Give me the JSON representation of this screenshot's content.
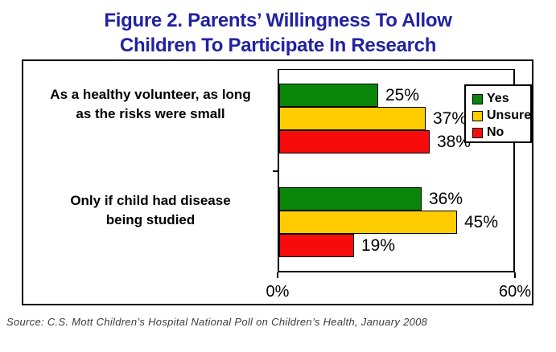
{
  "title": {
    "line1": "Figure 2. Parents’ Willingness To Allow",
    "line2": "Children To Participate In Research",
    "color": "#2222A2"
  },
  "category_labels": {
    "cat1_line1": "As a healthy volunteer, as long",
    "cat1_line2": "as the risks were small",
    "cat2_line1": "Only if child had disease",
    "cat2_line2": "being studied"
  },
  "source": "Source: C.S. Mott Children’s Hospital National Poll on Children’s Health, January 2008",
  "chart_data": {
    "type": "bar",
    "orientation": "horizontal",
    "title": "Figure 2. Parents’ Willingness To Allow Children To Participate In Research",
    "categories": [
      "As a healthy volunteer, as long as the risks were small",
      "Only if child had disease being studied"
    ],
    "series": [
      {
        "name": "Yes",
        "color": "#0A860A",
        "values": [
          25,
          36
        ]
      },
      {
        "name": "Unsure",
        "color": "#FFCC00",
        "values": [
          37,
          45
        ]
      },
      {
        "name": "No",
        "color": "#F80B0B",
        "values": [
          38,
          19
        ]
      }
    ],
    "value_labels": [
      [
        "25%",
        "37%",
        "38%"
      ],
      [
        "36%",
        "45%",
        "19%"
      ]
    ],
    "xlim": [
      0,
      60
    ],
    "x_tick_labels": [
      "0%",
      "60%"
    ],
    "xlabel": "",
    "ylabel": "",
    "grid": false,
    "legend_position": "top-right"
  }
}
